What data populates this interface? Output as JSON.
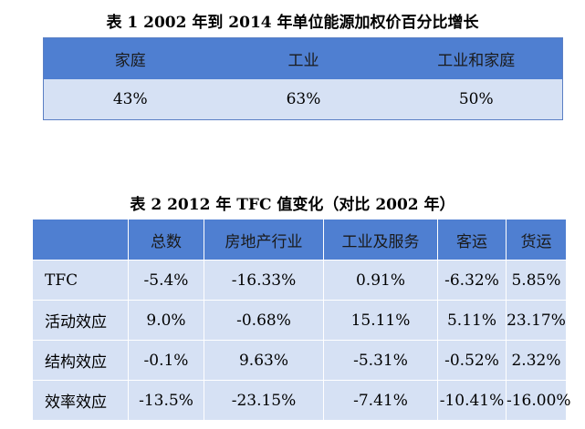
{
  "table1": {
    "caption": "表 1 2002 年到 2014 年单位能源加权价百分比增长",
    "headers": [
      "家庭",
      "工业",
      "工业和家庭"
    ],
    "values": [
      "43%",
      "63%",
      "50%"
    ]
  },
  "table2": {
    "caption": "表 2 2012 年 TFC 值变化（对比 2002 年）",
    "headers": [
      "",
      "总数",
      "房地产行业",
      "工业及服务",
      "客运",
      "货运"
    ],
    "rows": [
      {
        "label": "TFC",
        "values": [
          "-5.4%",
          "-16.33%",
          "0.91%",
          "-6.32%",
          "5.85%"
        ]
      },
      {
        "label": "活动效应",
        "values": [
          "9.0%",
          "-0.68%",
          "15.11%",
          "5.11%",
          "23.17%"
        ]
      },
      {
        "label": "结构效应",
        "values": [
          "-0.1%",
          "9.63%",
          "-5.31%",
          "-0.52%",
          "2.32%"
        ]
      },
      {
        "label": "效率效应",
        "values": [
          "-13.5%",
          "-23.15%",
          "-7.41%",
          "-10.41%",
          "-16.00%"
        ]
      }
    ]
  }
}
